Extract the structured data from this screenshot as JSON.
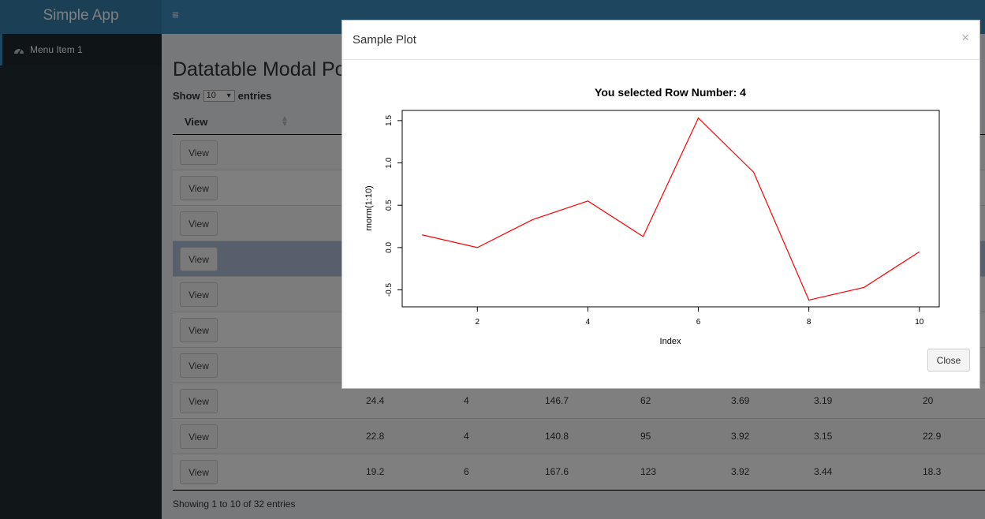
{
  "app": {
    "title": "Simple App",
    "toggle_glyph": "≡"
  },
  "sidebar": {
    "items": [
      {
        "label": "Menu Item 1",
        "icon": "dashboard-icon"
      }
    ]
  },
  "page": {
    "title": "Datatable Modal Po",
    "show_label": "Show",
    "entries_value": "10",
    "entries_label": "entries",
    "info": "Showing 1 to 10 of 32 entries"
  },
  "table": {
    "column_header": "View",
    "button_label": "View",
    "rows": [
      {
        "cells": []
      },
      {
        "cells": []
      },
      {
        "cells": []
      },
      {
        "cells": []
      },
      {
        "cells": []
      },
      {
        "cells": []
      },
      {
        "cells": []
      },
      {
        "cells": [
          "24.4",
          "4",
          "146.7",
          "62",
          "3.69",
          "3.19",
          "20"
        ]
      },
      {
        "cells": [
          "22.8",
          "4",
          "140.8",
          "95",
          "3.92",
          "3.15",
          "22.9"
        ]
      },
      {
        "cells": [
          "19.2",
          "6",
          "167.6",
          "123",
          "3.92",
          "3.44",
          "18.3"
        ]
      }
    ],
    "selected_row": 4
  },
  "modal": {
    "title": "Sample Plot",
    "close_x": "×",
    "close_label": "Close"
  },
  "chart_data": {
    "type": "line",
    "title": "You selected Row Number: 4",
    "xlabel": "Index",
    "ylabel": "rnorm(1:10)",
    "x": [
      1,
      2,
      3,
      4,
      5,
      6,
      7,
      8,
      9,
      10
    ],
    "series": [
      {
        "values": [
          0.15,
          0.0,
          0.33,
          0.55,
          0.13,
          1.53,
          0.89,
          -0.62,
          -0.47,
          -0.05
        ],
        "color": "#ff0000"
      }
    ],
    "xlim": [
      0.64,
      10.36
    ],
    "ylim": [
      -0.7,
      1.62
    ],
    "xticks": [
      "2",
      "4",
      "6",
      "8",
      "10"
    ],
    "yticks": [
      "-0.5",
      "0.0",
      "0.5",
      "1.0",
      "1.5"
    ],
    "grid": false
  }
}
